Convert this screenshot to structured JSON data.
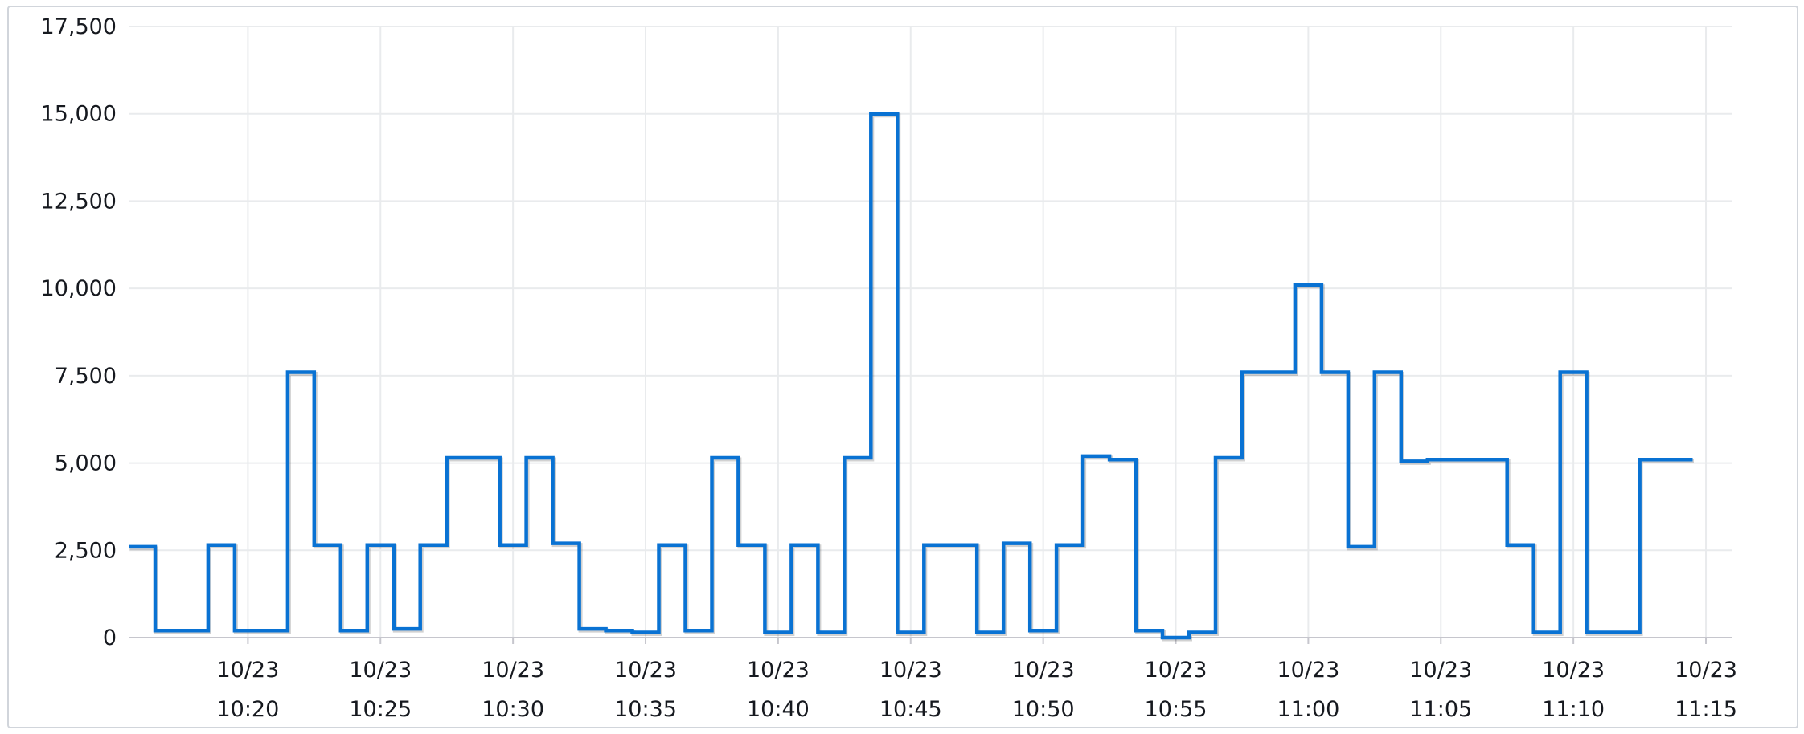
{
  "colors": {
    "series": "#0972d3",
    "gridline": "#e9ebed",
    "axis": "#c6c6cd",
    "text": "#16191f",
    "frame_border": "#d1d5db"
  },
  "chart_data": {
    "type": "line",
    "step": true,
    "title": "",
    "xlabel": "",
    "ylabel": "",
    "ylim": [
      0,
      17500
    ],
    "grid": true,
    "legend": "none",
    "y_ticks": [
      {
        "value": 0,
        "label": "0"
      },
      {
        "value": 2500,
        "label": "2,500"
      },
      {
        "value": 5000,
        "label": "5,000"
      },
      {
        "value": 7500,
        "label": "7,500"
      },
      {
        "value": 10000,
        "label": "10,000"
      },
      {
        "value": 12500,
        "label": "12,500"
      },
      {
        "value": 15000,
        "label": "15,000"
      },
      {
        "value": 17500,
        "label": "17,500"
      }
    ],
    "x_ticks": [
      {
        "time": "10:20",
        "date": "10/23"
      },
      {
        "time": "10:25",
        "date": "10/23"
      },
      {
        "time": "10:30",
        "date": "10/23"
      },
      {
        "time": "10:35",
        "date": "10/23"
      },
      {
        "time": "10:40",
        "date": "10/23"
      },
      {
        "time": "10:45",
        "date": "10/23"
      },
      {
        "time": "10:50",
        "date": "10/23"
      },
      {
        "time": "10:55",
        "date": "10/23"
      },
      {
        "time": "11:00",
        "date": "10/23"
      },
      {
        "time": "11:05",
        "date": "10/23"
      },
      {
        "time": "11:10",
        "date": "10/23"
      },
      {
        "time": "11:15",
        "date": "10/23"
      }
    ],
    "xlim": [
      "10:15:30",
      "11:16:00"
    ],
    "series": [
      {
        "x": [
          "10:16:00",
          "10:17:00",
          "10:18:00",
          "10:19:00",
          "10:20:00",
          "10:21:00",
          "10:22:00",
          "10:23:00",
          "10:24:00",
          "10:25:00",
          "10:26:00",
          "10:27:00",
          "10:28:00",
          "10:29:00",
          "10:30:00",
          "10:31:00",
          "10:32:00",
          "10:33:00",
          "10:34:00",
          "10:35:00",
          "10:36:00",
          "10:37:00",
          "10:38:00",
          "10:39:00",
          "10:40:00",
          "10:41:00",
          "10:42:00",
          "10:43:00",
          "10:44:00",
          "10:45:00",
          "10:46:00",
          "10:47:00",
          "10:48:00",
          "10:49:00",
          "10:50:00",
          "10:51:00",
          "10:52:00",
          "10:53:00",
          "10:54:00",
          "10:55:00",
          "10:56:00",
          "10:57:00",
          "10:58:00",
          "10:59:00",
          "11:00:00",
          "11:01:00",
          "11:02:00",
          "11:03:00",
          "11:04:00",
          "11:05:00",
          "11:06:00",
          "11:07:00",
          "11:08:00",
          "11:09:00",
          "11:10:00",
          "11:11:00",
          "11:12:00",
          "11:13:00",
          "11:14:00"
        ],
        "values": [
          2600,
          200,
          200,
          2650,
          200,
          200,
          7600,
          2650,
          200,
          2650,
          250,
          2650,
          5150,
          5150,
          2650,
          5150,
          2700,
          250,
          200,
          150,
          2650,
          200,
          5150,
          2650,
          150,
          2650,
          150,
          5150,
          15000,
          150,
          2650,
          2650,
          150,
          2700,
          200,
          2650,
          5200,
          5100,
          200,
          0,
          150,
          5150,
          7600,
          7600,
          10100,
          7600,
          2600,
          7600,
          5050,
          5100,
          5100,
          5100,
          2650,
          150,
          7600,
          150,
          150,
          5100,
          5100
        ]
      }
    ]
  }
}
